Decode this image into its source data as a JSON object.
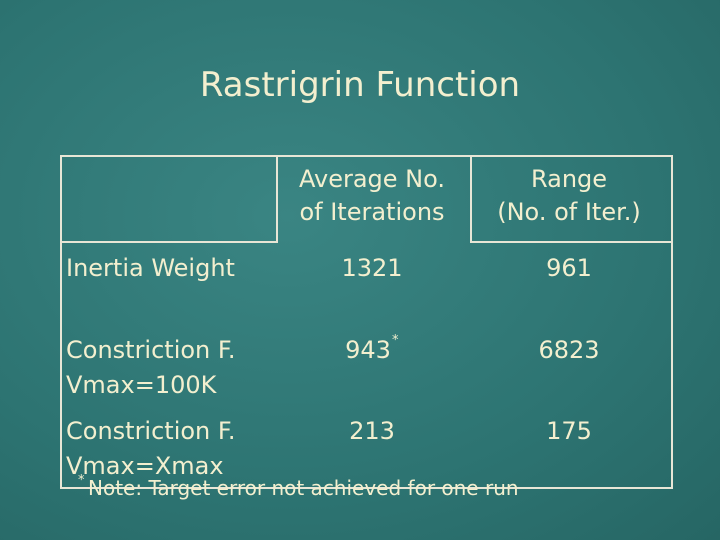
{
  "title": "Rastrigrin Function",
  "table": {
    "header": [
      [
        "Average No.",
        "of Iterations"
      ],
      [
        "Range",
        "(No. of Iter.)"
      ]
    ],
    "rows": [
      {
        "label": [
          "Inertia Weight"
        ],
        "cells": [
          {
            "text": 1321
          },
          {
            "text": 961
          }
        ]
      },
      {
        "label": [
          "Constriction F.",
          "Vmax=100K"
        ],
        "cells": [
          {
            "text": 943,
            "sup": "*"
          },
          {
            "text": 6823
          }
        ]
      },
      {
        "label": [
          "Constriction F.",
          "Vmax=Xmax"
        ],
        "cells": [
          {
            "text": 213
          },
          {
            "text": 175
          }
        ]
      }
    ]
  },
  "note": {
    "marker": "*",
    "text": "Note: Target error not achieved for one run"
  }
}
